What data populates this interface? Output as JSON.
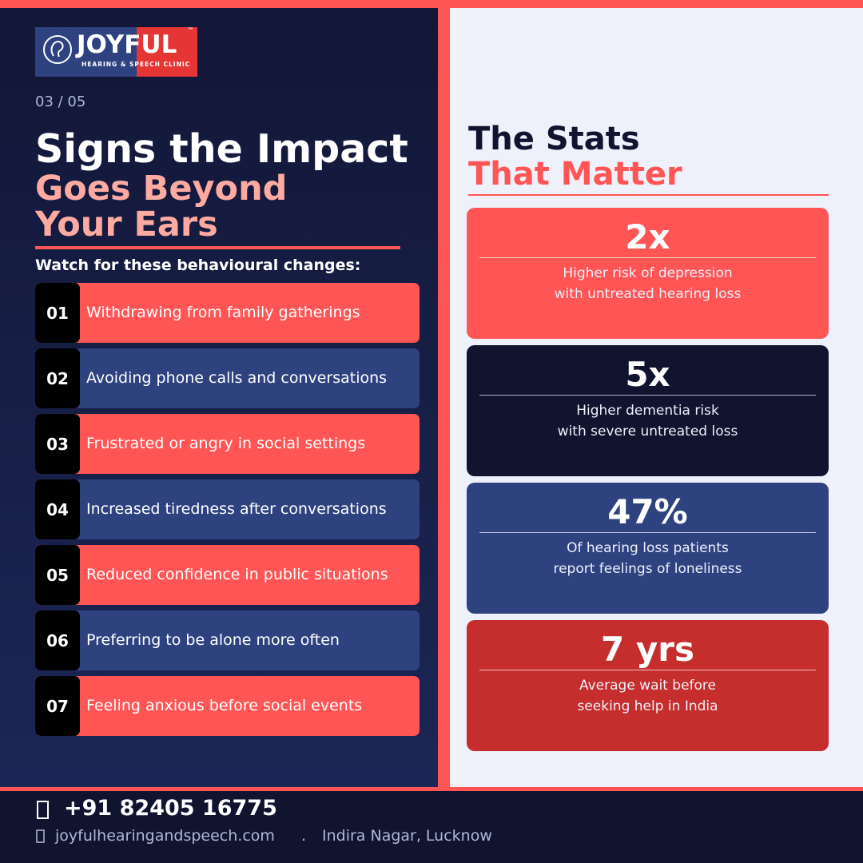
{
  "logo": {
    "brand_first": "JOY",
    "brand_second": "FUL",
    "trademark": "™",
    "tagline": "HEARING & SPEECH CLINIC"
  },
  "page_counter": "03 / 05",
  "left": {
    "title_lines": [
      "Signs the Impact",
      "Goes Beyond",
      "Your Ears"
    ],
    "subtitle": "Watch for these behavioural changes:",
    "items": [
      {
        "number": "01",
        "text": "Withdrawing from family gatherings"
      },
      {
        "number": "02",
        "text": "Avoiding phone calls and conversations"
      },
      {
        "number": "03",
        "text": "Frustrated or angry in social settings"
      },
      {
        "number": "04",
        "text": "Increased tiredness after conversations"
      },
      {
        "number": "05",
        "text": "Reduced confidence in public situations"
      },
      {
        "number": "06",
        "text": "Preferring to be alone more often"
      },
      {
        "number": "07",
        "text": "Feeling anxious before social events"
      }
    ]
  },
  "right": {
    "heading_lines": [
      "The Stats",
      "That Matter"
    ],
    "stats": [
      {
        "value": "2x",
        "lines": [
          "Higher risk of depression",
          "with untreated hearing loss"
        ]
      },
      {
        "value": "5x",
        "lines": [
          "Higher dementia risk",
          "with severe untreated loss"
        ]
      },
      {
        "value": "47%",
        "lines": [
          "Of hearing loss patients",
          "report feelings of loneliness"
        ]
      },
      {
        "value": "7 yrs",
        "lines": [
          "Average wait before",
          "seeking help in India"
        ]
      }
    ]
  },
  "footer": {
    "phone": "+91 82405 16775",
    "website": "joyfulhearingandspeech.com",
    "separator": ".",
    "location": "Indira Nagar, Lucknow"
  }
}
